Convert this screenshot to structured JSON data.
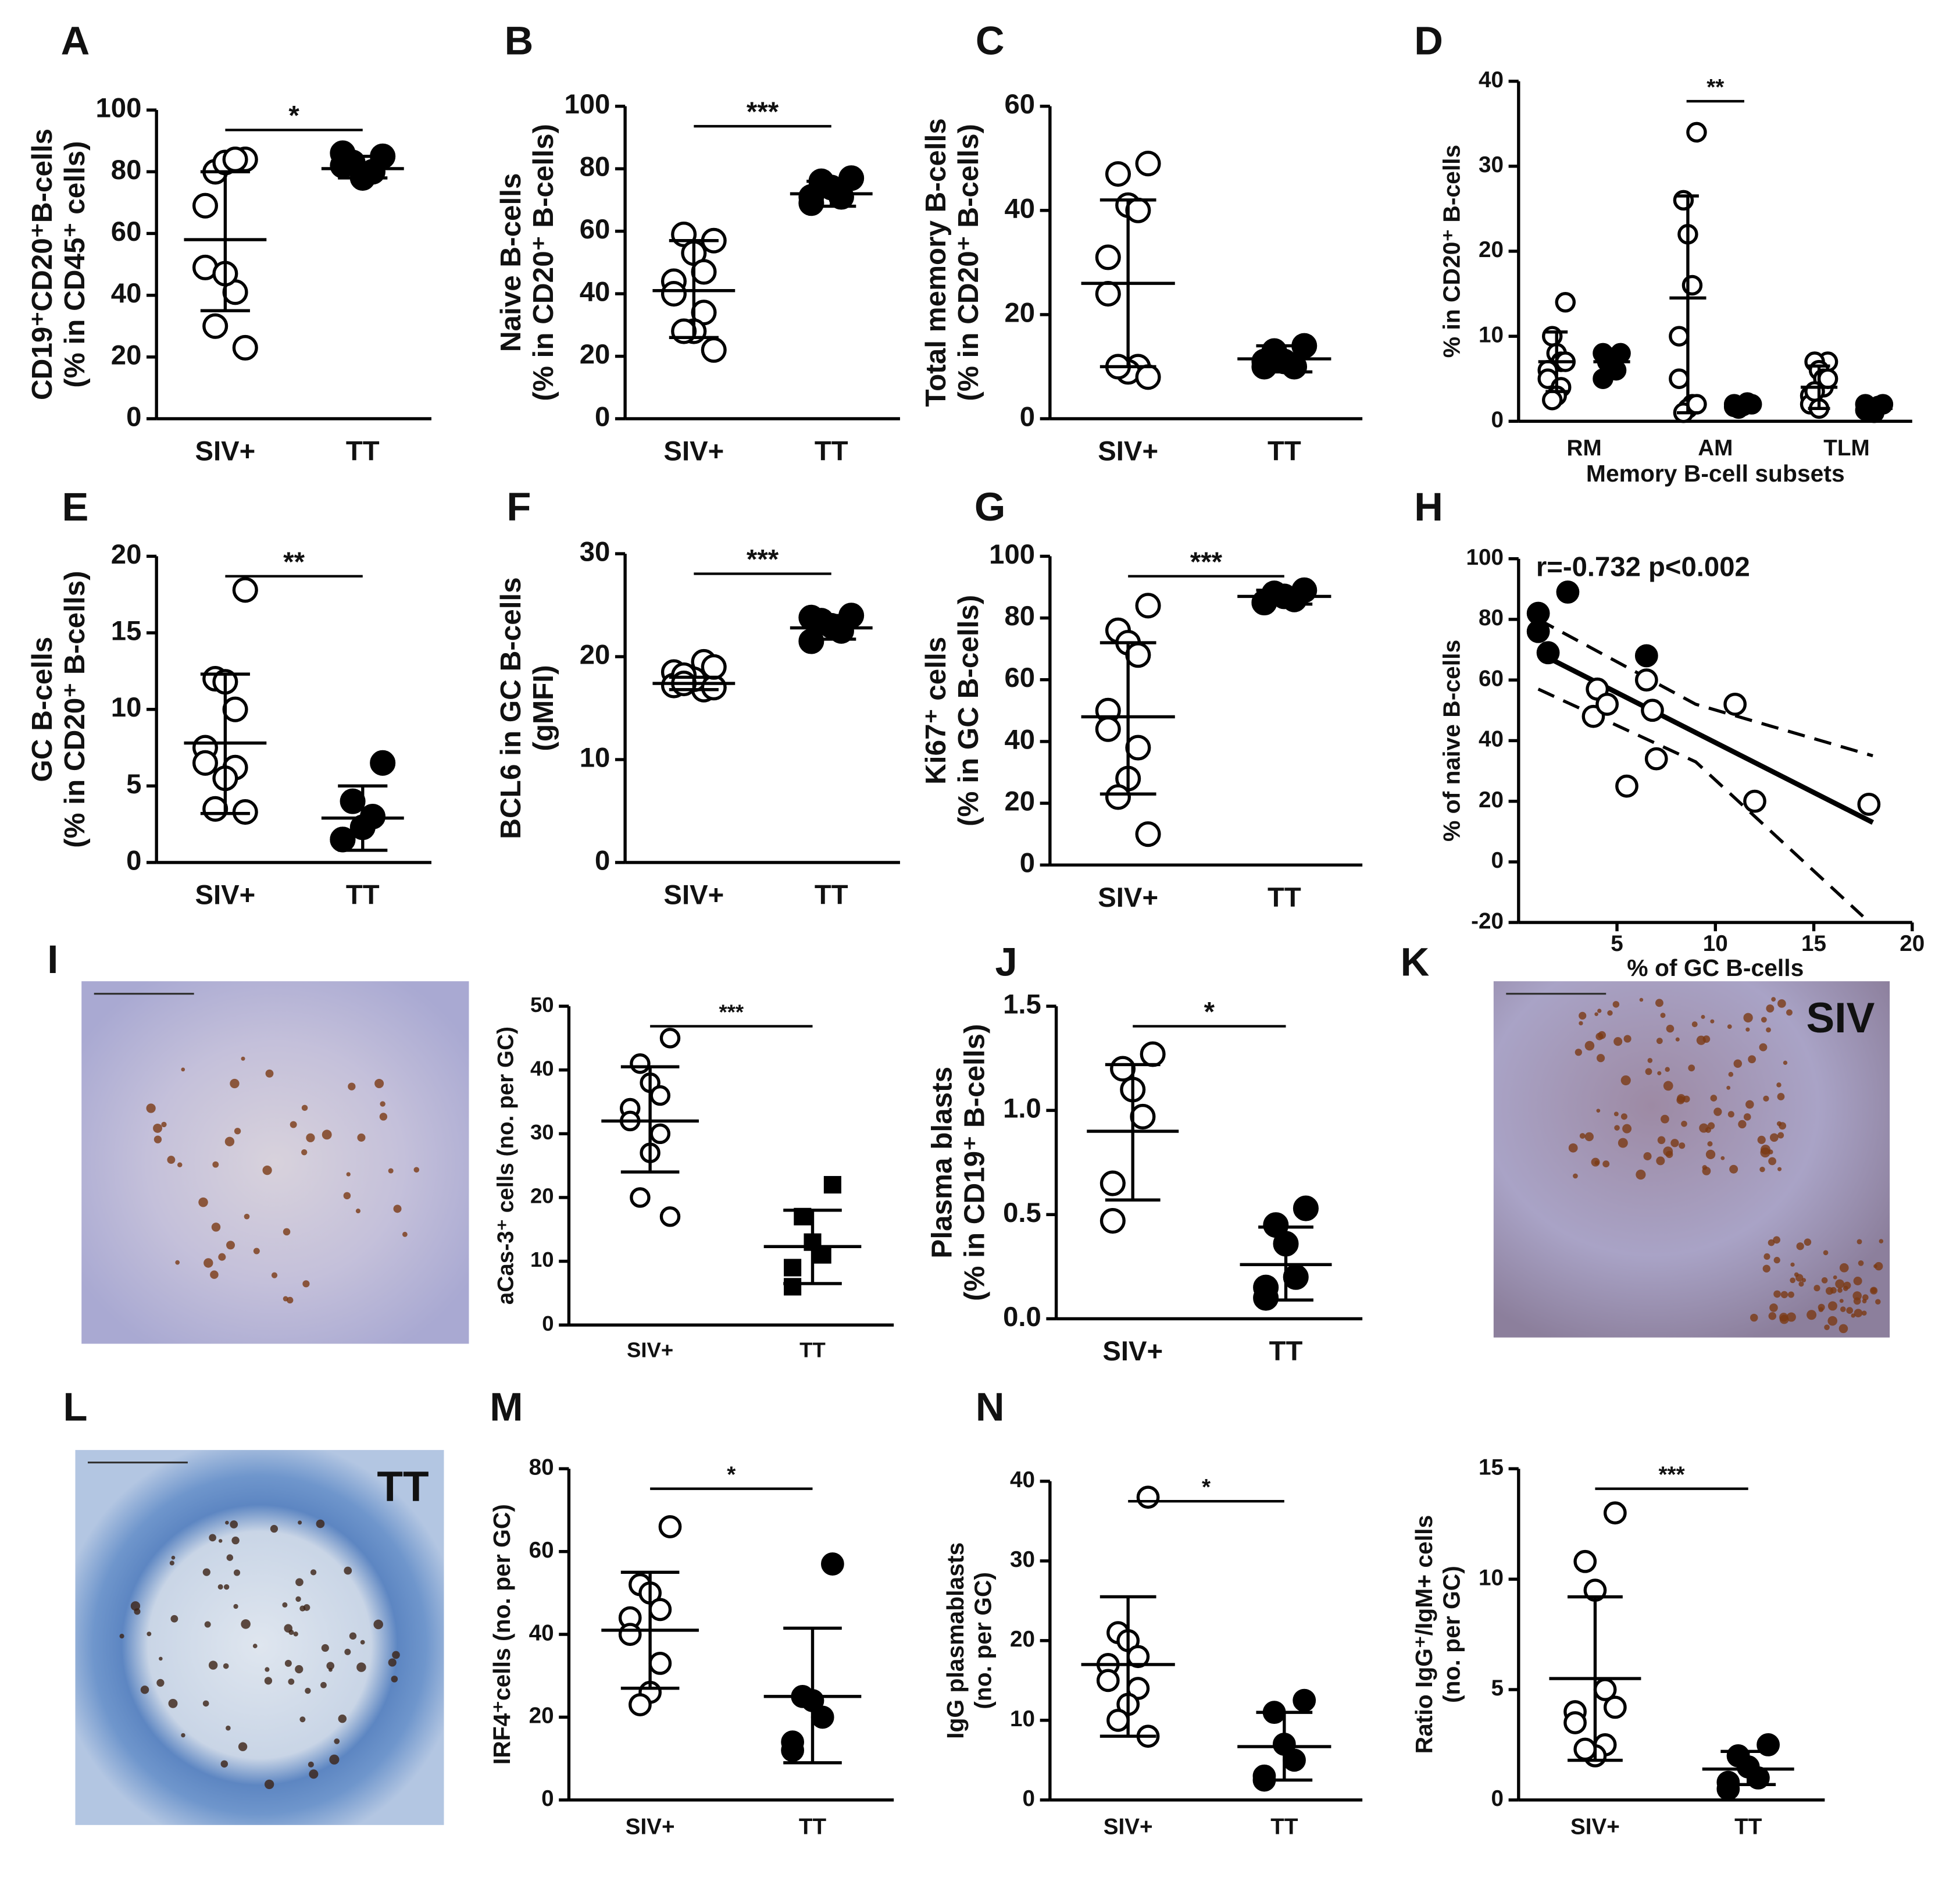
{
  "chart_data": [
    {
      "type": "dot",
      "label": "A",
      "y_label": [
        "CD19⁺CD20⁺B-cells",
        "(% in CD45⁺ cells)"
      ],
      "categories": [
        "SIV+",
        "TT"
      ],
      "ylim": [
        0,
        100
      ],
      "yticks": [
        0,
        20,
        40,
        60,
        80,
        100
      ],
      "significance": "*",
      "groups": [
        {
          "marker": "open",
          "values": [
            84,
            80,
            83,
            84,
            69,
            49,
            41,
            47,
            30,
            23
          ],
          "mean": 58,
          "low": 35,
          "high": 80
        },
        {
          "marker": "filled",
          "values": [
            85,
            83,
            78,
            80,
            82,
            86
          ],
          "mean": 81,
          "low": 78,
          "high": 85
        }
      ]
    },
    {
      "type": "dot",
      "label": "B",
      "y_label": [
        "Naive B-cells",
        "(% in CD20⁺ B-cells)"
      ],
      "categories": [
        "SIV+",
        "TT"
      ],
      "ylim": [
        0,
        100
      ],
      "yticks": [
        0,
        20,
        40,
        60,
        80,
        100
      ],
      "significance": "***",
      "groups": [
        {
          "marker": "open",
          "values": [
            57,
            59,
            53,
            47,
            44,
            40,
            34,
            28,
            28,
            22
          ],
          "mean": 41,
          "low": 26,
          "high": 57
        },
        {
          "marker": "filled",
          "values": [
            77,
            76,
            74,
            71,
            71,
            69
          ],
          "mean": 72,
          "low": 68,
          "high": 76
        }
      ]
    },
    {
      "type": "dot",
      "label": "C",
      "y_label": [
        "Total memory B-cells",
        "(% in CD20⁺ B-cells)"
      ],
      "categories": [
        "SIV+",
        "TT"
      ],
      "ylim": [
        0,
        60
      ],
      "yticks": [
        0,
        20,
        40,
        60
      ],
      "groups": [
        {
          "marker": "open",
          "values": [
            49,
            47,
            41,
            40,
            31,
            24,
            10,
            9,
            10,
            8
          ],
          "mean": 26,
          "low": 10,
          "high": 42
        },
        {
          "marker": "filled",
          "values": [
            14,
            13,
            11,
            10,
            11,
            10
          ],
          "mean": 11.5,
          "low": 9,
          "high": 14
        }
      ]
    },
    {
      "type": "dot",
      "label": "D",
      "y_label": [
        "% in CD20⁺ B-cells"
      ],
      "x_label": "Memory B-cell subsets",
      "categories": [
        "RM",
        "AM",
        "TLM"
      ],
      "ylim": [
        0,
        40
      ],
      "yticks": [
        0,
        10,
        20,
        30,
        40
      ],
      "significance": "**",
      "groups": [
        {
          "marker": "open",
          "values": [
            14,
            10,
            8,
            7,
            6,
            5,
            4,
            3,
            2.5,
            7
          ],
          "mean": 7,
          "low": 3.5,
          "high": 10.5
        },
        {
          "marker": "filled",
          "values": [
            8,
            7,
            7,
            6,
            5,
            8
          ],
          "mean": 7,
          "low": 5.5,
          "high": 8.5
        },
        {
          "marker": "open",
          "values": [
            34,
            26,
            22,
            16,
            10,
            5,
            2,
            1.5,
            1,
            2
          ],
          "mean": 14.5,
          "low": 1,
          "high": 26.5
        },
        {
          "marker": "filled",
          "values": [
            2,
            1.5,
            1.8,
            2.2,
            1.7,
            2
          ],
          "mean": 2,
          "low": 1.5,
          "high": 2.5
        },
        {
          "marker": "open",
          "values": [
            7,
            7,
            6,
            4,
            3,
            2,
            5,
            1.5,
            3.5,
            5
          ],
          "mean": 4,
          "low": 1.5,
          "high": 6.5
        },
        {
          "marker": "filled",
          "values": [
            2,
            1.5,
            1,
            1.8,
            2,
            1.3
          ],
          "mean": 1.5,
          "low": 1,
          "high": 2
        }
      ]
    },
    {
      "type": "dot",
      "label": "E",
      "y_label": [
        "GC B-cells",
        "(% in CD20⁺ B-cells)"
      ],
      "categories": [
        "SIV+",
        "TT"
      ],
      "ylim": [
        0,
        20
      ],
      "yticks": [
        0,
        5,
        10,
        15,
        20
      ],
      "significance": "**",
      "groups": [
        {
          "marker": "open",
          "values": [
            17.8,
            12,
            11.8,
            10,
            7.5,
            6.5,
            6.2,
            5.5,
            3.5,
            3.3
          ],
          "mean": 7.8,
          "low": 3.2,
          "high": 12.3
        },
        {
          "marker": "filled",
          "values": [
            6.5,
            4,
            2.3,
            3,
            1.5,
            1.5
          ],
          "mean": 2.9,
          "low": 0.8,
          "high": 5
        }
      ]
    },
    {
      "type": "dot",
      "label": "F",
      "y_label": [
        "BCL6 in GC B-cells",
        "(gMFI)"
      ],
      "categories": [
        "SIV+",
        "TT"
      ],
      "ylim": [
        0,
        30
      ],
      "yticks": [
        0,
        10,
        20,
        30
      ],
      "significance": "***",
      "groups": [
        {
          "marker": "open",
          "values": [
            17,
            17.5,
            18,
            19.5,
            18.5,
            17.2,
            16.8,
            17.8,
            18.2,
            17,
            19,
            17.4
          ],
          "mean": 17.4,
          "low": 16.8,
          "high": 18
        },
        {
          "marker": "filled",
          "values": [
            24,
            23.5,
            23,
            22.5,
            21.5,
            23.8
          ],
          "mean": 22.8,
          "low": 21.7,
          "high": 24
        }
      ]
    },
    {
      "type": "dot",
      "label": "G",
      "y_label": [
        "Ki67⁺ cells",
        "(% in GC B-cells)"
      ],
      "categories": [
        "SIV+",
        "TT"
      ],
      "ylim": [
        0,
        100
      ],
      "yticks": [
        0,
        20,
        40,
        60,
        80,
        100
      ],
      "significance": "***",
      "groups": [
        {
          "marker": "open",
          "values": [
            84,
            76,
            72,
            68,
            50,
            44,
            38,
            28,
            22,
            10
          ],
          "mean": 48,
          "low": 23,
          "high": 72
        },
        {
          "marker": "filled",
          "values": [
            89,
            88,
            87,
            86,
            85,
            85
          ],
          "mean": 87,
          "low": 84.5,
          "high": 89
        }
      ]
    },
    {
      "type": "scatter",
      "label": "H",
      "annotation": "r=-0.732 p<0.002",
      "x_label": "% of GC B-cells",
      "y_label": [
        "% of naive B-cells"
      ],
      "xlim": [
        0,
        20
      ],
      "xticks": [
        5,
        10,
        15,
        20
      ],
      "ylim": [
        -20,
        100
      ],
      "yticks": [
        -20,
        0,
        20,
        40,
        60,
        80,
        100
      ],
      "series": [
        {
          "marker": "filled",
          "x": [
            1,
            2.5,
            1,
            1.5,
            6.5
          ],
          "y": [
            82,
            89,
            76,
            69,
            68
          ]
        },
        {
          "marker": "open",
          "x": [
            4,
            3.8,
            4.5,
            6.5,
            6.8,
            7,
            5.5,
            11,
            12,
            17.8
          ],
          "y": [
            57,
            48,
            52,
            60,
            50,
            34,
            25,
            52,
            20,
            19
          ]
        }
      ],
      "fit": {
        "x": [
          1,
          18
        ],
        "y": [
          69,
          13
        ]
      },
      "band_upper": {
        "x": [
          1,
          9,
          18
        ],
        "y": [
          80,
          52,
          35
        ]
      },
      "band_lower": {
        "x": [
          1,
          9,
          17.5
        ],
        "y": [
          57,
          33,
          -18
        ]
      }
    },
    {
      "type": "image",
      "label": "I"
    },
    {
      "type": "dot",
      "y_label": [
        "aCas-3⁺ cells (no. per GC)"
      ],
      "categories": [
        "SIV+",
        "TT"
      ],
      "ylim": [
        0,
        50
      ],
      "yticks": [
        0,
        10,
        20,
        30,
        40,
        50
      ],
      "significance": "***",
      "groups": [
        {
          "marker": "open",
          "values": [
            45,
            41,
            38,
            36,
            34,
            32,
            30,
            27,
            20,
            17
          ],
          "mean": 32,
          "low": 24,
          "high": 40.5
        },
        {
          "marker": "square",
          "values": [
            22,
            17,
            13,
            11,
            9,
            6
          ],
          "mean": 12.3,
          "low": 6.5,
          "high": 18
        }
      ]
    },
    {
      "type": "dot",
      "label": "J",
      "y_label": [
        "Plasma blasts",
        "(% in CD19⁺ B-cells)"
      ],
      "categories": [
        "SIV+",
        "TT"
      ],
      "ylim": [
        0,
        1.5
      ],
      "yticks": [
        {
          "value": 0,
          "label": "0.0"
        },
        0.5,
        {
          "value": 1,
          "label": "1.0"
        },
        1.5
      ],
      "significance": "*",
      "groups": [
        {
          "marker": "open",
          "values": [
            1.27,
            1.2,
            1.1,
            0.97,
            0.65,
            0.47
          ],
          "mean": 0.9,
          "low": 0.57,
          "high": 1.22
        },
        {
          "marker": "filled",
          "values": [
            0.53,
            0.45,
            0.36,
            0.2,
            0.15,
            0.1
          ],
          "mean": 0.26,
          "low": 0.09,
          "high": 0.44
        }
      ]
    },
    {
      "type": "image",
      "label": "K",
      "caption": "SIV"
    },
    {
      "type": "image",
      "label": "L",
      "caption": "TT"
    },
    {
      "type": "dot",
      "label": "M",
      "y_label": [
        "IRF4⁺cells  (no. per GC)"
      ],
      "categories": [
        "SIV+",
        "TT"
      ],
      "ylim": [
        0,
        80
      ],
      "yticks": [
        0,
        20,
        40,
        60,
        80
      ],
      "significance": "*",
      "groups": [
        {
          "marker": "open",
          "values": [
            66,
            52,
            50,
            46,
            44,
            40,
            33,
            26,
            23
          ],
          "mean": 41,
          "low": 27,
          "high": 55
        },
        {
          "marker": "filled",
          "values": [
            57,
            25,
            24,
            20,
            14,
            12
          ],
          "mean": 25,
          "low": 9,
          "high": 41.5
        }
      ]
    },
    {
      "type": "dot",
      "label": "N",
      "y_label": [
        "IgG plasmablasts",
        "(no. per GC)"
      ],
      "categories": [
        "SIV+",
        "TT"
      ],
      "ylim": [
        0,
        40
      ],
      "yticks": [
        0,
        10,
        20,
        30,
        40
      ],
      "significance": "*",
      "groups": [
        {
          "marker": "open",
          "values": [
            38,
            21,
            20,
            18,
            17,
            15,
            14,
            12,
            10,
            8
          ],
          "mean": 17,
          "low": 8,
          "high": 25.5
        },
        {
          "marker": "filled",
          "values": [
            12.5,
            11,
            7,
            5,
            3,
            2.5
          ],
          "mean": 6.7,
          "low": 2.5,
          "high": 11
        }
      ]
    },
    {
      "type": "dot",
      "y_label": [
        "Ratio IgG⁺/IgM+ cells",
        "(no. per GC)"
      ],
      "categories": [
        "SIV+",
        "TT"
      ],
      "ylim": [
        0,
        15
      ],
      "yticks": [
        0,
        5,
        10,
        15
      ],
      "significance": "***",
      "groups": [
        {
          "marker": "open",
          "values": [
            13,
            10.8,
            9.5,
            5,
            4,
            3.5,
            2.5,
            2,
            2.3,
            4.2
          ],
          "mean": 5.5,
          "low": 1.8,
          "high": 9.2
        },
        {
          "marker": "filled",
          "values": [
            2.5,
            2,
            1.5,
            1,
            0.8,
            0.5
          ],
          "mean": 1.4,
          "low": 0.7,
          "high": 2.2
        }
      ]
    }
  ]
}
